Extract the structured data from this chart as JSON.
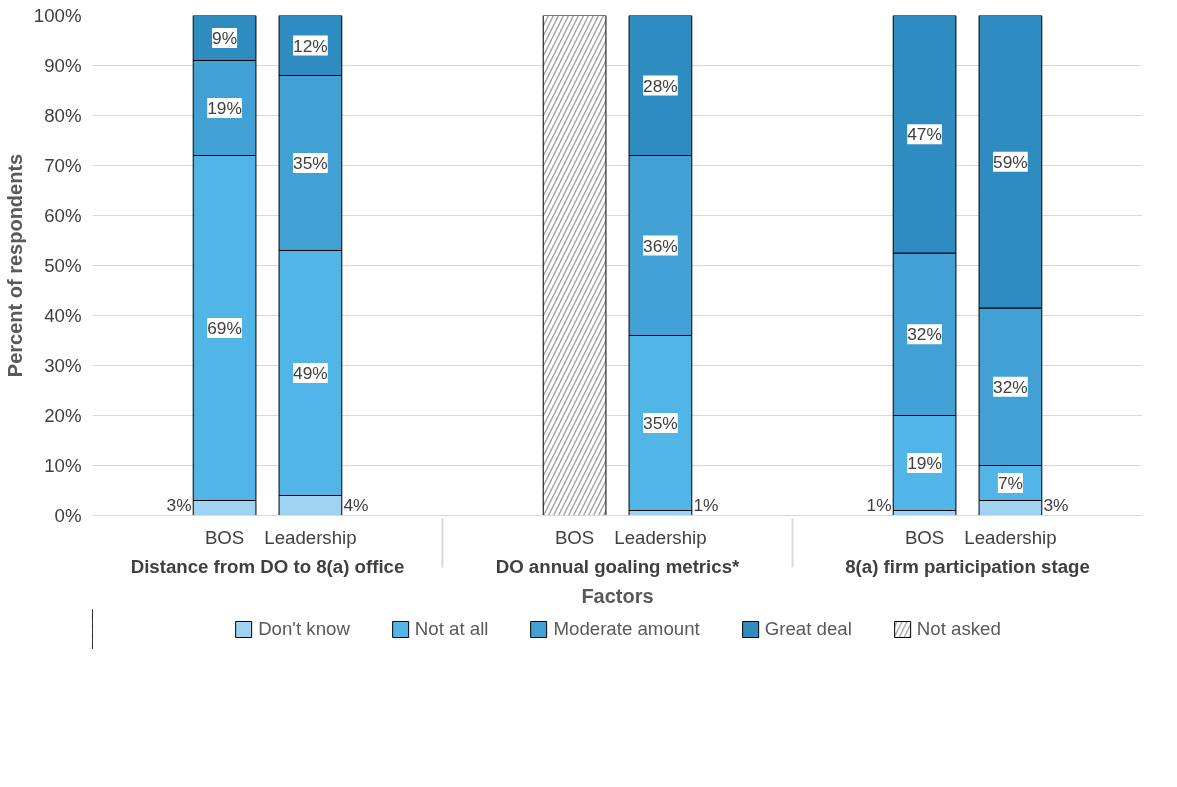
{
  "chart_data": {
    "type": "bar",
    "stacked": true,
    "xlabel": "Factors",
    "ylabel": "Percent of respondents",
    "categories": [
      "BOS",
      "Leadership",
      "BOS",
      "Leadership",
      "BOS",
      "Leadership"
    ],
    "annotations": [
      "Distance from DO to 8(a) office",
      "DO annual goaling metrics*",
      "8(a) firm participation stage"
    ],
    "ylim": [
      0,
      100
    ],
    "yticks": [
      {
        "value": 0,
        "label": "0%"
      },
      {
        "value": 10,
        "label": "10%"
      },
      {
        "value": 20,
        "label": "20%"
      },
      {
        "value": 30,
        "label": "30%"
      },
      {
        "value": 40,
        "label": "40%"
      },
      {
        "value": 50,
        "label": "50%"
      },
      {
        "value": 60,
        "label": "60%"
      },
      {
        "value": 70,
        "label": "70%"
      },
      {
        "value": 80,
        "label": "80%"
      },
      {
        "value": 90,
        "label": "90%"
      },
      {
        "value": 100,
        "label": "100%"
      }
    ],
    "grid": "y",
    "legend": "bottom",
    "series": [
      {
        "name": "Don't know",
        "color": "#9fd3f1",
        "values": [
          3,
          4,
          null,
          1,
          1,
          3
        ],
        "value_labels": [
          "3%",
          "4%",
          null,
          "1%",
          "1%",
          "3%"
        ]
      },
      {
        "name": "Not at all",
        "color": "#52b5e7",
        "values": [
          69,
          49,
          null,
          35,
          19,
          7
        ],
        "value_labels": [
          "69%",
          "49%",
          null,
          "35%",
          "19%",
          "7%"
        ]
      },
      {
        "name": "Moderate amount",
        "color": "#41a1d5",
        "values": [
          19,
          35,
          null,
          36,
          32.5,
          31.5
        ],
        "value_labels": [
          "19%",
          "35%",
          null,
          "36%",
          "32%",
          "32%"
        ]
      },
      {
        "name": "Great deal",
        "color": "#2f8cc0",
        "values": [
          9,
          12,
          null,
          28,
          47.5,
          58.5
        ],
        "value_labels": [
          "9%",
          "12%",
          null,
          "28%",
          "47%",
          "59%"
        ]
      },
      {
        "name": "Not asked",
        "color": "#a6a6a6",
        "values": [
          null,
          null,
          100,
          null,
          null,
          null
        ]
      }
    ]
  }
}
